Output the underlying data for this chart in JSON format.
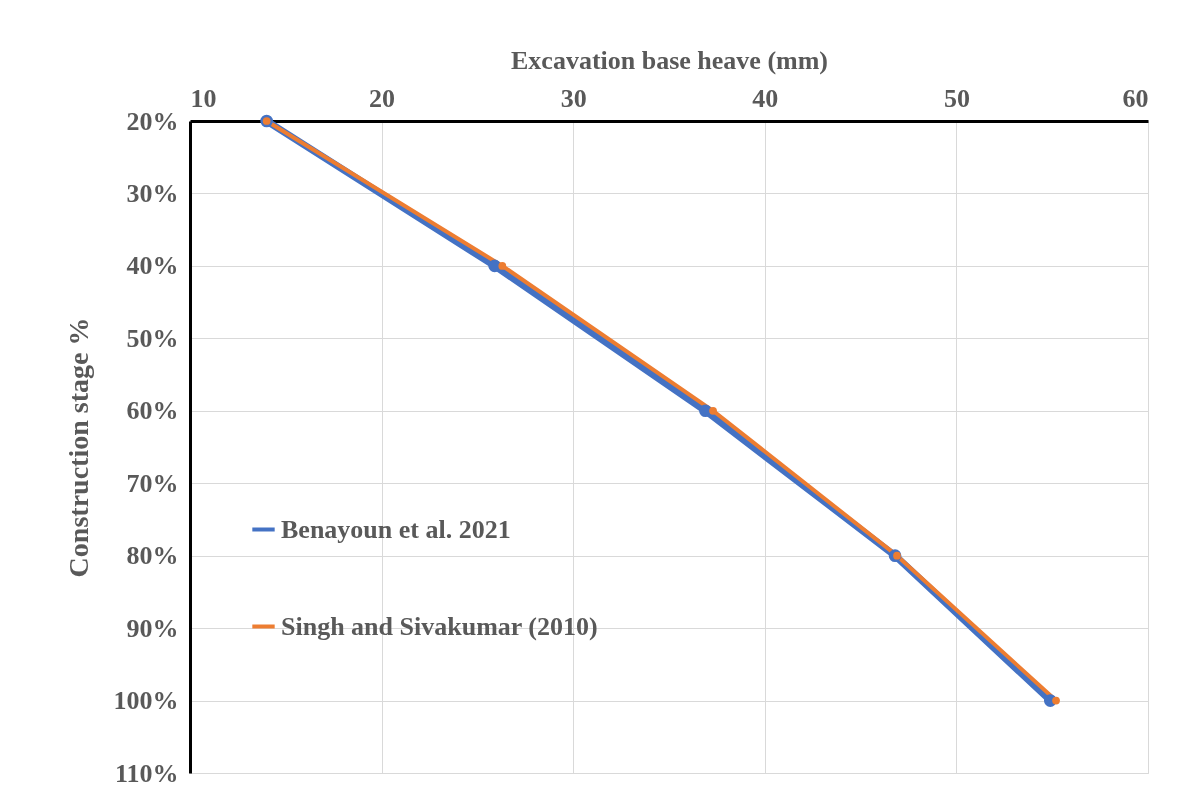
{
  "chart_data": {
    "type": "line",
    "xlabel": "Excavation base heave (mm)",
    "ylabel": "Construction  stage %",
    "xlim": [
      10,
      60
    ],
    "xticks": [
      10,
      20,
      30,
      40,
      50,
      60
    ],
    "ylim": [
      110,
      20
    ],
    "yticks": [
      {
        "value": 20,
        "label": "20%"
      },
      {
        "value": 30,
        "label": "30%"
      },
      {
        "value": 40,
        "label": "40%"
      },
      {
        "value": 50,
        "label": "50%"
      },
      {
        "value": 60,
        "label": "60%"
      },
      {
        "value": 70,
        "label": "70%"
      },
      {
        "value": 80,
        "label": "80%"
      },
      {
        "value": 90,
        "label": "90%"
      },
      {
        "value": 100,
        "label": "100%"
      },
      {
        "value": 110,
        "label": "110%"
      }
    ],
    "grid": true,
    "marker": "circle",
    "line_style": "solid",
    "legend": "bottom left",
    "series": [
      {
        "name": "Benayoun et al. 2021",
        "color": "#4472c4",
        "x": [
          14.0,
          25.9,
          36.9,
          46.8,
          54.9
        ],
        "values": [
          20,
          40,
          60,
          80,
          100
        ]
      },
      {
        "name": "Singh and Sivakumar (2010)",
        "color": "#ed7d31",
        "x": [
          14.0,
          26.3,
          37.3,
          46.9,
          55.2
        ],
        "values": [
          20,
          40,
          60,
          80,
          100
        ]
      }
    ]
  }
}
